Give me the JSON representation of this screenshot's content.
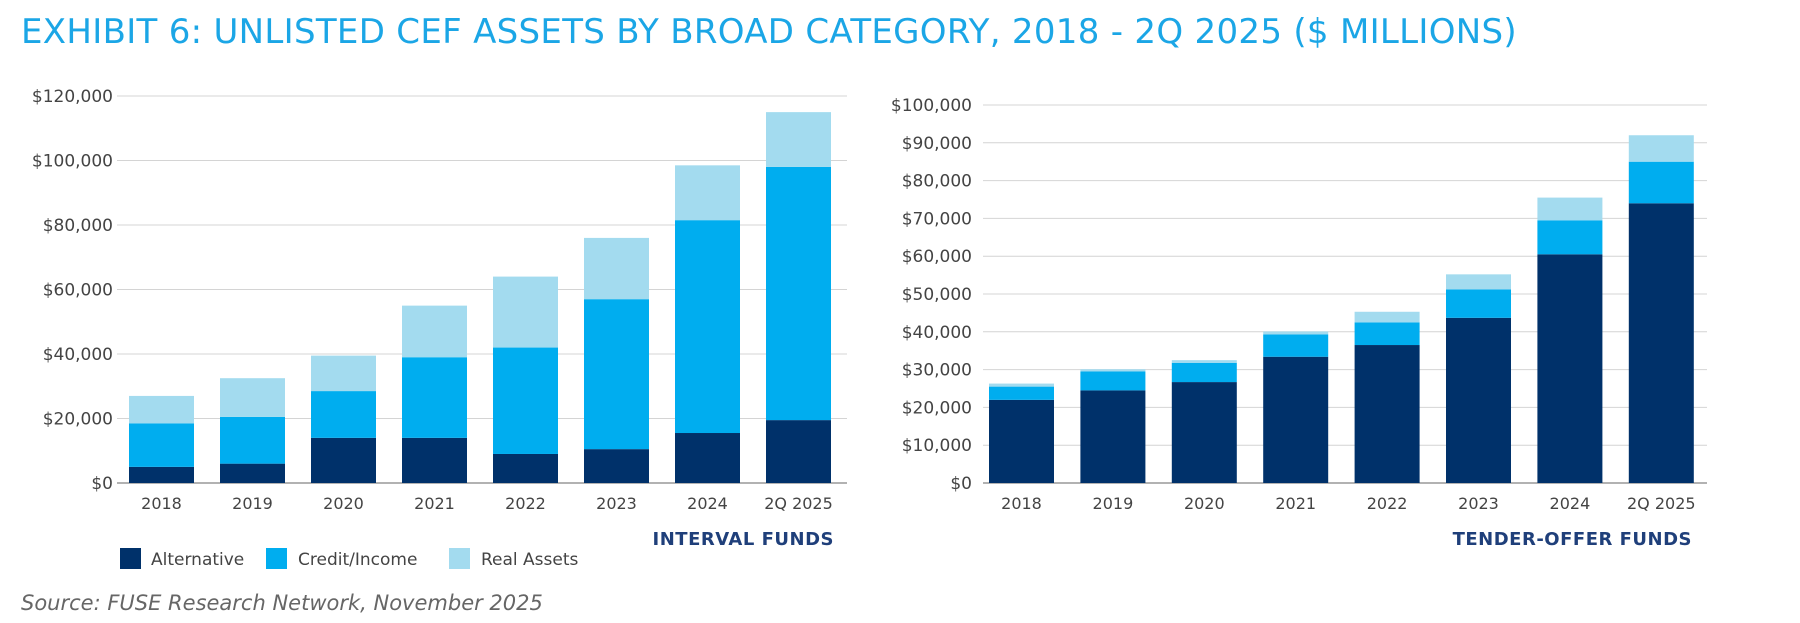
{
  "title": "EXHIBIT 6: UNLISTED CEF ASSETS BY BROAD CATEGORY, 2018 - 2Q 2025 ($ MILLIONS)",
  "source": "Source: FUSE Research Network, November 2025",
  "colors": {
    "title": "#1ba6e6",
    "caption": "#1f3f7a",
    "grid": "#d4d4d4",
    "axis": "#999999",
    "Alternative": "#00316a",
    "Credit/Income": "#00adef",
    "Real Assets": "#a3dbef"
  },
  "legend": [
    "Alternative",
    "Credit/Income",
    "Real Assets"
  ],
  "chart_data": [
    {
      "type": "bar",
      "stacked": true,
      "caption": "INTERVAL FUNDS",
      "categories": [
        "2018",
        "2019",
        "2020",
        "2021",
        "2022",
        "2023",
        "2024",
        "2Q 2025"
      ],
      "ylim": [
        0,
        120000
      ],
      "yticks": [
        0,
        20000,
        40000,
        60000,
        80000,
        100000,
        120000
      ],
      "ytick_labels": [
        "$0",
        "$20,000",
        "$40,000",
        "$60,000",
        "$80,000",
        "$100,000",
        "$120,000"
      ],
      "grid": true,
      "legend_position": "bottom-left",
      "series": [
        {
          "name": "Alternative",
          "values": [
            5000,
            6000,
            14000,
            14000,
            9000,
            10500,
            15500,
            19500
          ]
        },
        {
          "name": "Credit/Income",
          "values": [
            13500,
            14500,
            14500,
            25000,
            33000,
            46500,
            66000,
            78500
          ]
        },
        {
          "name": "Real Assets",
          "values": [
            8500,
            12000,
            11000,
            16000,
            22000,
            19000,
            17000,
            17000
          ]
        }
      ]
    },
    {
      "type": "bar",
      "stacked": true,
      "caption": "TENDER-OFFER FUNDS",
      "categories": [
        "2018",
        "2019",
        "2020",
        "2021",
        "2022",
        "2023",
        "2024",
        "2Q 2025"
      ],
      "ylim": [
        0,
        100000
      ],
      "yticks": [
        0,
        10000,
        20000,
        30000,
        40000,
        50000,
        60000,
        70000,
        80000,
        90000,
        100000
      ],
      "ytick_labels": [
        "$0",
        "$10,000",
        "$20,000",
        "$30,000",
        "$40,000",
        "$50,000",
        "$60,000",
        "$70,000",
        "$80,000",
        "$90,000",
        "$100,000"
      ],
      "grid": true,
      "series": [
        {
          "name": "Alternative",
          "values": [
            22000,
            24500,
            26700,
            33400,
            36500,
            43700,
            60500,
            74000
          ]
        },
        {
          "name": "Credit/Income",
          "values": [
            3500,
            5000,
            5100,
            5900,
            6000,
            7500,
            9000,
            11000
          ]
        },
        {
          "name": "Real Assets",
          "values": [
            800,
            600,
            700,
            800,
            2800,
            4000,
            6000,
            7000
          ]
        }
      ]
    }
  ]
}
